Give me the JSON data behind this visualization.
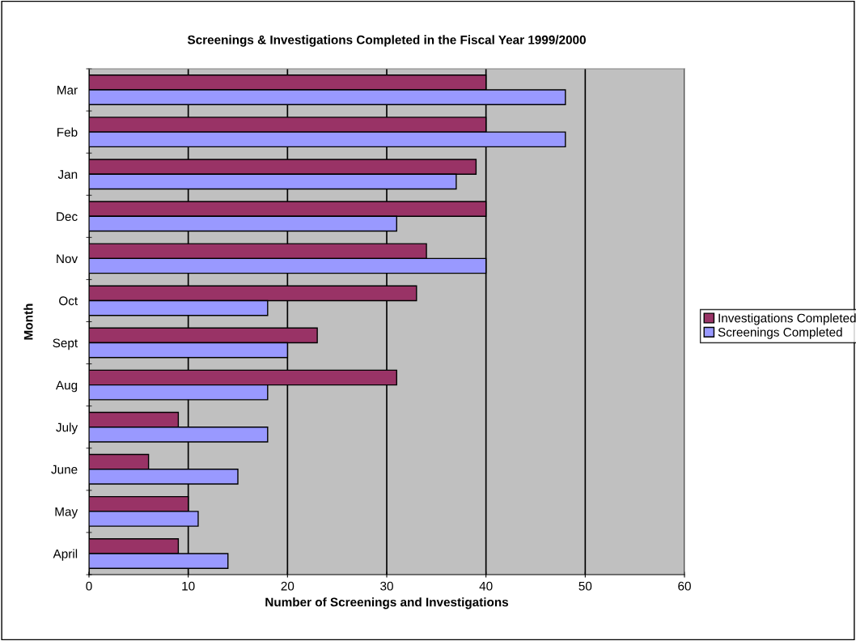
{
  "chart_data": {
    "type": "bar",
    "orientation": "horizontal",
    "title": "Screenings & Investigations Completed in the Fiscal Year 1999/2000",
    "xlabel": "Number of Screenings and Investigations",
    "ylabel": "Month",
    "categories": [
      "Mar",
      "Feb",
      "Jan",
      "Dec",
      "Nov",
      "Oct",
      "Sept",
      "Aug",
      "July",
      "June",
      "May",
      "April"
    ],
    "series": [
      {
        "name": "Investigations Completed",
        "color": "#993366",
        "values": [
          40,
          40,
          39,
          40,
          34,
          33,
          23,
          31,
          9,
          6,
          10,
          9
        ]
      },
      {
        "name": "Screenings Completed",
        "color": "#9999ff",
        "values": [
          48,
          48,
          37,
          31,
          40,
          18,
          20,
          18,
          18,
          15,
          11,
          14
        ]
      }
    ],
    "xlim": [
      0,
      60
    ],
    "xticks": [
      0,
      10,
      20,
      30,
      40,
      50,
      60
    ],
    "grid": "x",
    "legend": "right"
  }
}
